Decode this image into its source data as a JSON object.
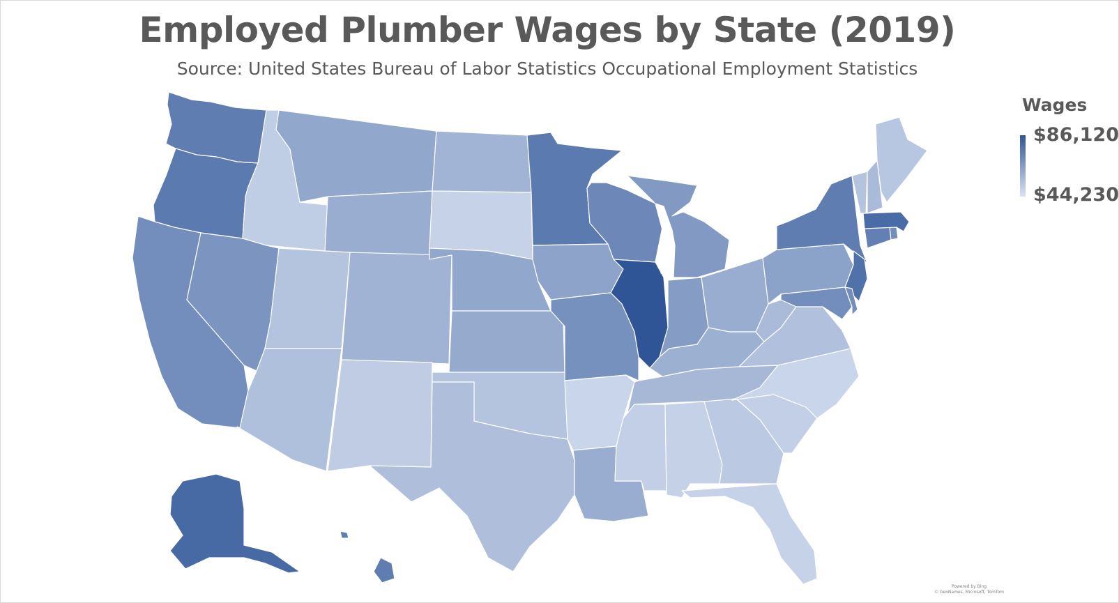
{
  "title": "Employed Plumber Wages by State (2019)",
  "subtitle": "Source: United States Bureau of Labor Statistics Occupational Employment Statistics",
  "legend": {
    "title": "Wages",
    "max_label": "$86,120",
    "min_label": "$44,230",
    "max_value": 86120,
    "min_value": 44230,
    "max_color": "#2f5597",
    "min_color": "#dae3f3"
  },
  "credit": {
    "line1": "Powered by Bing",
    "line2": "© GeoNames, Microsoft, TomTom"
  },
  "map_data": {
    "type": "choropleth",
    "measure": "Wages",
    "regions": [
      {
        "state": "Washington",
        "shade": 0.72
      },
      {
        "state": "Oregon",
        "shade": 0.74
      },
      {
        "state": "California",
        "shade": 0.6
      },
      {
        "state": "Idaho",
        "shade": 0.15
      },
      {
        "state": "Nevada",
        "shade": 0.55
      },
      {
        "state": "Montana",
        "shade": 0.42
      },
      {
        "state": "Wyoming",
        "shade": 0.38
      },
      {
        "state": "Utah",
        "shade": 0.22
      },
      {
        "state": "Arizona",
        "shade": 0.25
      },
      {
        "state": "Colorado",
        "shade": 0.34
      },
      {
        "state": "New Mexico",
        "shade": 0.16
      },
      {
        "state": "North Dakota",
        "shade": 0.33
      },
      {
        "state": "South Dakota",
        "shade": 0.12
      },
      {
        "state": "Nebraska",
        "shade": 0.42
      },
      {
        "state": "Kansas",
        "shade": 0.4
      },
      {
        "state": "Oklahoma",
        "shade": 0.22
      },
      {
        "state": "Texas",
        "shade": 0.26
      },
      {
        "state": "Minnesota",
        "shade": 0.74
      },
      {
        "state": "Iowa",
        "shade": 0.45
      },
      {
        "state": "Missouri",
        "shade": 0.58
      },
      {
        "state": "Arkansas",
        "shade": 0.1
      },
      {
        "state": "Louisiana",
        "shade": 0.38
      },
      {
        "state": "Wisconsin",
        "shade": 0.64
      },
      {
        "state": "Illinois",
        "shade": 1.0
      },
      {
        "state": "Michigan",
        "shade": 0.52
      },
      {
        "state": "Indiana",
        "shade": 0.5
      },
      {
        "state": "Ohio",
        "shade": 0.38
      },
      {
        "state": "Kentucky",
        "shade": 0.36
      },
      {
        "state": "Tennessee",
        "shade": 0.3
      },
      {
        "state": "Mississippi",
        "shade": 0.14
      },
      {
        "state": "Alabama",
        "shade": 0.13
      },
      {
        "state": "Georgia",
        "shade": 0.18
      },
      {
        "state": "Florida",
        "shade": 0.12
      },
      {
        "state": "South Carolina",
        "shade": 0.14
      },
      {
        "state": "North Carolina",
        "shade": 0.1
      },
      {
        "state": "Virginia",
        "shade": 0.24
      },
      {
        "state": "West Virginia",
        "shade": 0.28
      },
      {
        "state": "Pennsylvania",
        "shade": 0.46
      },
      {
        "state": "New York",
        "shade": 0.72
      },
      {
        "state": "New Jersey",
        "shade": 0.8
      },
      {
        "state": "Maryland",
        "shade": 0.6
      },
      {
        "state": "Delaware",
        "shade": 0.6
      },
      {
        "state": "Connecticut",
        "shade": 0.7
      },
      {
        "state": "Rhode Island",
        "shade": 0.6
      },
      {
        "state": "Massachusetts",
        "shade": 0.84
      },
      {
        "state": "Vermont",
        "shade": 0.22
      },
      {
        "state": "New Hampshire",
        "shade": 0.28
      },
      {
        "state": "Maine",
        "shade": 0.2
      },
      {
        "state": "Alaska",
        "shade": 0.86
      },
      {
        "state": "Hawaii",
        "shade": 0.72
      }
    ]
  }
}
